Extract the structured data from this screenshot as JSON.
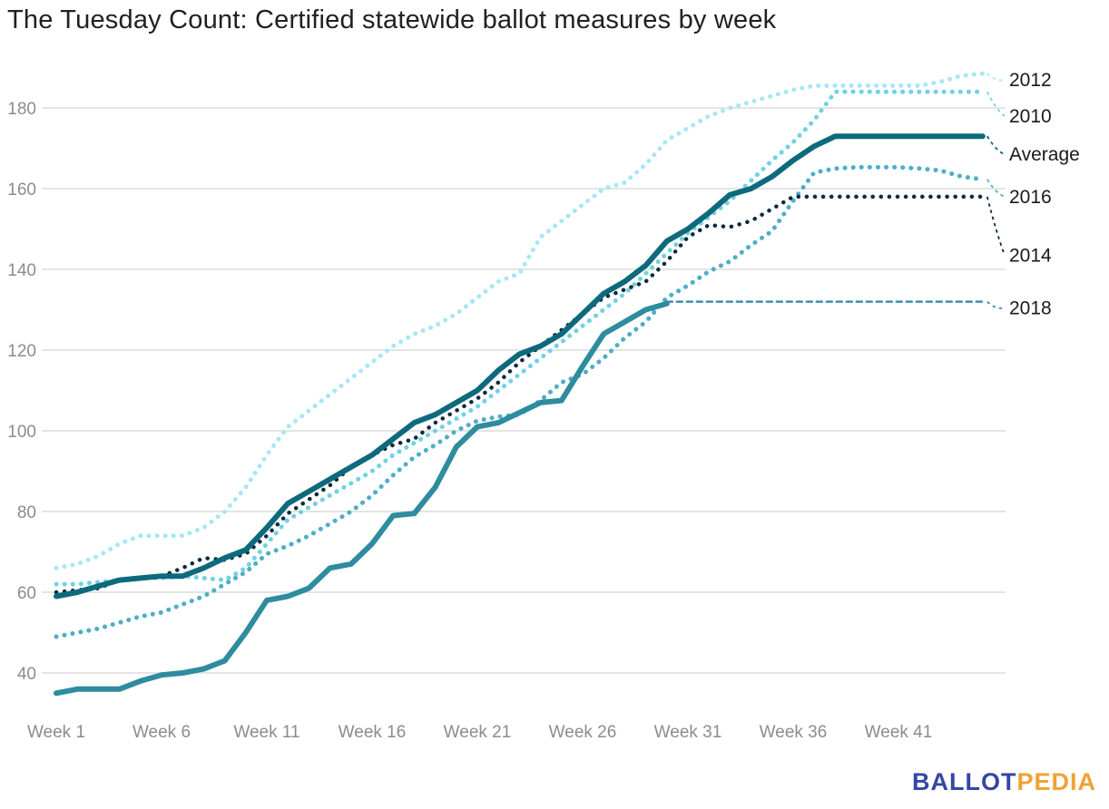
{
  "title": "The Tuesday Count: Certified statewide ballot measures by week",
  "logo": {
    "text_primary": "BALLOT",
    "text_secondary": "PEDIA",
    "color_primary": "#3347A2",
    "color_secondary": "#F2A233"
  },
  "chart_data": {
    "type": "line",
    "title": "The Tuesday Count: Certified statewide ballot measures by week",
    "xlabel": "",
    "ylabel": "",
    "x_unit": "week",
    "x_tick_weeks": [
      1,
      6,
      11,
      16,
      21,
      26,
      31,
      36,
      41
    ],
    "x_tick_labels": [
      "Week 1",
      "Week 6",
      "Week 11",
      "Week 16",
      "Week 21",
      "Week 26",
      "Week 31",
      "Week 36",
      "Week 41"
    ],
    "y_ticks": [
      40,
      60,
      80,
      100,
      120,
      140,
      160,
      180
    ],
    "ylim": [
      33,
      191
    ],
    "xlim": [
      1,
      46
    ],
    "grid": "horizontal-only",
    "grid_color": "#E4E4E4",
    "axis_text_color": "#8C8C8C",
    "label_text_color": "#1A1A1A",
    "legend_position": "end-of-line-labels-right",
    "series": [
      {
        "id": "2012",
        "name": "2012",
        "color": "#A7E8F3",
        "style": "dotted",
        "width": 5,
        "start_week": 1,
        "values": [
          66,
          67,
          69,
          72,
          74,
          74,
          74,
          76,
          80,
          86,
          94,
          101,
          105,
          109,
          113,
          117,
          121,
          124,
          126,
          129,
          133,
          137,
          139,
          148,
          152,
          156,
          160,
          161.5,
          166,
          172,
          175,
          178,
          180,
          181.5,
          183,
          184.5,
          185.5,
          185.5,
          185.5,
          185.5,
          185.5,
          185.5,
          186.5,
          188,
          188.5
        ],
        "end_label": "2012",
        "label_value": 187
      },
      {
        "id": "2010",
        "name": "2010",
        "color": "#70D2E3",
        "style": "dotted",
        "width": 5,
        "start_week": 1,
        "values": [
          62,
          62,
          62.5,
          63,
          63.5,
          63.5,
          64,
          63.5,
          63,
          66,
          72,
          78,
          81,
          84,
          87,
          90,
          94,
          97,
          100,
          103,
          106,
          110,
          114,
          118,
          122,
          126,
          130,
          134,
          139,
          144,
          149,
          153,
          157,
          162,
          167,
          171.5,
          177,
          184,
          184,
          184,
          184,
          184,
          184,
          184,
          184
        ],
        "end_label": "2010",
        "label_value": 178
      },
      {
        "id": "2016",
        "name": "2016",
        "color": "#4FAEC5",
        "style": "dotted",
        "width": 5,
        "start_week": 1,
        "values": [
          49,
          50,
          51,
          52.5,
          54,
          55,
          57,
          59,
          62,
          65,
          69.5,
          71.5,
          74,
          77,
          80,
          84,
          89,
          93.5,
          96.5,
          100,
          102.5,
          103.5,
          104,
          107.5,
          112,
          114,
          118,
          123,
          127,
          133,
          136,
          139.5,
          142,
          146,
          149.5,
          157,
          164,
          165,
          165.3,
          165.3,
          165.3,
          165,
          164.5,
          163,
          162.3
        ],
        "end_label": "2016",
        "label_value": 158
      },
      {
        "id": "2014",
        "name": "2014",
        "color": "#0C2C3E",
        "style": "dotted",
        "width": 4.5,
        "start_week": 1,
        "values": [
          60,
          60.5,
          61,
          63,
          63.5,
          64,
          66,
          68.5,
          68,
          69.5,
          74,
          79.5,
          83,
          86.5,
          91,
          94,
          96.5,
          98,
          102,
          105,
          108,
          112,
          117,
          121,
          125,
          129,
          133,
          135,
          137,
          142,
          148,
          151,
          150.5,
          152,
          155,
          158,
          158,
          158,
          158,
          158,
          158,
          158,
          158,
          158,
          158
        ],
        "end_label": "2014",
        "label_value": 143.5
      },
      {
        "id": "2018-projected",
        "name": "2018",
        "color": "#3E8FA8",
        "style": "dashed",
        "width": 2.5,
        "start_week": 30,
        "values": [
          132,
          132,
          132,
          132,
          132,
          132,
          132,
          132,
          132,
          132,
          132,
          132,
          132,
          132,
          132,
          132
        ],
        "end_label": "2018",
        "label_value": 130.5
      },
      {
        "id": "2018",
        "name": "2018",
        "color": "#2E8C9E",
        "style": "solid",
        "width": 6,
        "start_week": 1,
        "values": [
          35,
          36,
          36,
          36,
          38,
          39.5,
          40,
          41,
          43,
          50,
          58,
          59,
          61,
          66,
          67,
          72,
          79,
          79.5,
          86,
          96,
          101,
          102,
          104.5,
          107,
          107.5,
          116,
          124,
          127,
          130,
          131.5
        ],
        "end_label": null,
        "label_value": null
      },
      {
        "id": "average",
        "name": "Average",
        "color": "#0D6A7C",
        "style": "solid",
        "width": 6,
        "start_week": 1,
        "values": [
          59,
          60,
          61.5,
          63,
          63.5,
          64,
          64,
          66,
          68.5,
          70.5,
          76,
          82,
          85,
          88,
          91,
          94,
          98,
          102,
          104,
          107,
          110,
          115,
          119,
          121,
          124,
          129,
          134,
          137,
          141,
          147,
          150,
          154,
          158.5,
          160,
          163,
          167,
          170.5,
          173,
          173,
          173,
          173,
          173,
          173,
          173,
          173
        ],
        "end_label": "Average",
        "label_value": 168.5
      }
    ]
  }
}
